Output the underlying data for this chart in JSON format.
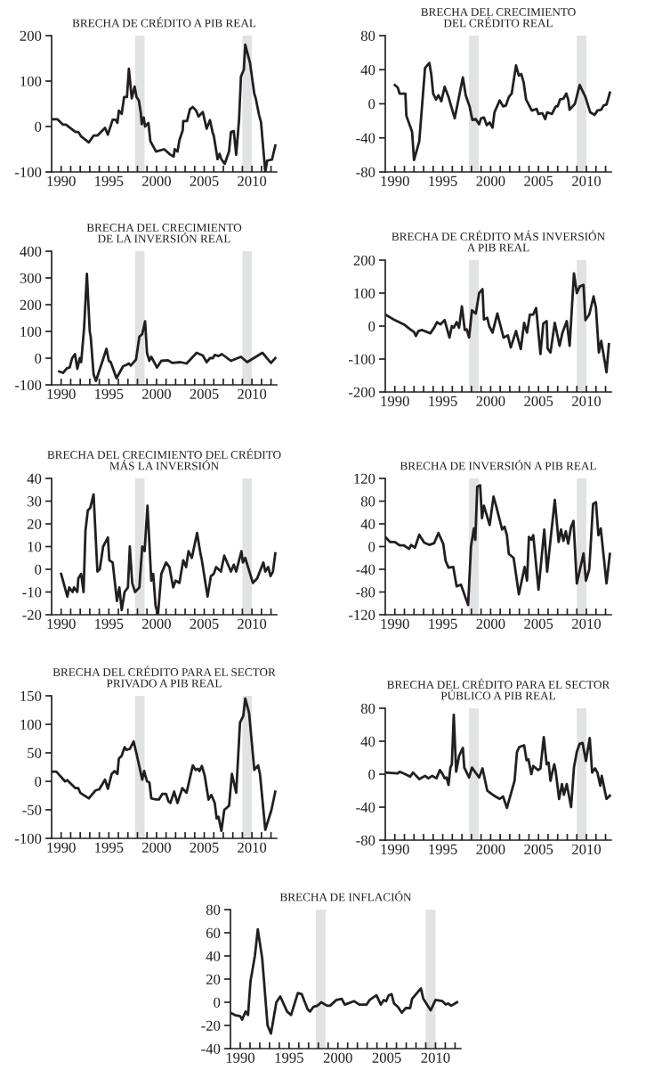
{
  "chart_data": [
    {
      "type": "line",
      "title": "BRECHA DE CRÉDITO A PIB REAL",
      "xlim": [
        1989,
        2012.6
      ],
      "ylim": [
        -100,
        200
      ],
      "yticks": [
        -100,
        0,
        100,
        200
      ],
      "xticks": [
        1990,
        {
          "value": 1991,
          "label": null
        },
        {
          "value": 1992,
          "label": null
        },
        {
          "value": 1993,
          "label": null
        },
        {
          "value": 1994,
          "label": null
        },
        1995,
        {
          "value": 1996,
          "label": null
        },
        {
          "value": 1997,
          "label": null
        },
        {
          "value": 1998,
          "label": null
        },
        {
          "value": 1999,
          "label": null
        },
        2000,
        {
          "value": 2001,
          "label": null
        },
        {
          "value": 2002,
          "label": null
        },
        {
          "value": 2003,
          "label": null
        },
        {
          "value": 2004,
          "label": null
        },
        2005,
        {
          "value": 2006,
          "label": null
        },
        {
          "value": 2007,
          "label": null
        },
        {
          "value": 2008,
          "label": null
        },
        {
          "value": 2009,
          "label": null
        },
        2010,
        {
          "value": 2011,
          "label": null
        },
        {
          "value": 2012,
          "label": null
        }
      ],
      "bands": [
        {
          "axis": "x",
          "from": 1997.75,
          "to": 1998.75,
          "color": "#e1e2e4"
        },
        {
          "axis": "x",
          "from": 2009,
          "to": 2010,
          "color": "#e1e2e4"
        }
      ],
      "x": [
        1989.0,
        1989.6,
        1990.2,
        1990.5,
        1991.5,
        1991.8,
        1992.1,
        1992.9,
        1993.4,
        1993.8,
        1994.6,
        1994.9,
        1995.4,
        1995.7,
        1995.9,
        1996.05,
        1996.35,
        1996.6,
        1996.9,
        1997.1,
        1997.4,
        1997.7,
        1997.9,
        1998.15,
        1998.35,
        1998.45,
        1998.65,
        1998.8,
        1999.15,
        1999.35,
        1999.95,
        2000.8,
        2001.45,
        2001.8,
        2001.9,
        2002.2,
        2002.4,
        2002.75,
        2002.8,
        2003.2,
        2003.5,
        2003.8,
        2004.15,
        2004.4,
        2004.85,
        2005.25,
        2005.6,
        2005.9,
        2006.0,
        2006.4,
        2006.6,
        2006.8,
        2007.15,
        2007.6,
        2007.8,
        2008.1,
        2008.35,
        2008.65,
        2008.85,
        2009.15,
        2009.3,
        2009.8,
        2010.25,
        2010.4,
        2010.75,
        2010.95,
        2011.4,
        2011.6,
        2012.1,
        2012.45
      ],
      "series": [
        {
          "color": "#231f20",
          "values": [
            16,
            16,
            4,
            4,
            -12,
            -12,
            -22,
            -35,
            -20,
            -20,
            -3,
            -18,
            15,
            15,
            8,
            35,
            28,
            65,
            65,
            127,
            62,
            88,
            65,
            57,
            30,
            5,
            20,
            0,
            8,
            -32,
            -55,
            -50,
            -62,
            -66,
            -50,
            -55,
            -30,
            -8,
            12,
            12,
            38,
            43,
            35,
            22,
            32,
            -5,
            14,
            -15,
            -20,
            -72,
            -60,
            -72,
            -82,
            -55,
            -12,
            -10,
            -62,
            15,
            110,
            125,
            180,
            140,
            72,
            62,
            25,
            10,
            -100,
            -75,
            -73,
            -42
          ]
        }
      ]
    },
    {
      "type": "line",
      "title": "BRECHA DEL CRECIMIENTO\nDEL CRÉDITO REAL",
      "xlim": [
        1989,
        2012.6
      ],
      "ylim": [
        -80,
        80
      ],
      "yticks": [
        -80,
        -40,
        0,
        40,
        80
      ],
      "xticks": [
        1990,
        {
          "value": 1991,
          "label": null
        },
        {
          "value": 1992,
          "label": null
        },
        {
          "value": 1993,
          "label": null
        },
        {
          "value": 1994,
          "label": null
        },
        1995,
        {
          "value": 1996,
          "label": null
        },
        {
          "value": 1997,
          "label": null
        },
        {
          "value": 1998,
          "label": null
        },
        {
          "value": 1999,
          "label": null
        },
        2000,
        {
          "value": 2001,
          "label": null
        },
        {
          "value": 2002,
          "label": null
        },
        {
          "value": 2003,
          "label": null
        },
        {
          "value": 2004,
          "label": null
        },
        2005,
        {
          "value": 2006,
          "label": null
        },
        {
          "value": 2007,
          "label": null
        },
        {
          "value": 2008,
          "label": null
        },
        {
          "value": 2009,
          "label": null
        },
        2010,
        {
          "value": 2011,
          "label": null
        },
        {
          "value": 2012,
          "label": null
        }
      ],
      "bands": [
        {
          "axis": "x",
          "from": 1997.75,
          "to": 1998.75,
          "color": "#e1e2e4"
        },
        {
          "axis": "x",
          "from": 2009,
          "to": 2010,
          "color": "#e1e2e4"
        }
      ],
      "x": [
        1990.0,
        1990.3,
        1990.5,
        1991.1,
        1991.2,
        1991.8,
        1992.0,
        1992.55,
        1993.15,
        1993.6,
        1993.8,
        1994.0,
        1994.3,
        1994.55,
        1994.85,
        1995.2,
        1995.6,
        1996.25,
        1997.1,
        1997.4,
        1997.8,
        1998.1,
        1998.45,
        1998.8,
        1999.0,
        1999.3,
        1999.6,
        1999.9,
        2000.2,
        2000.4,
        2000.95,
        2001.3,
        2001.6,
        2001.9,
        2002.2,
        2002.65,
        2002.95,
        2003.2,
        2003.45,
        2003.7,
        2004.3,
        2004.8,
        2005.0,
        2005.4,
        2005.7,
        2005.9,
        2006.4,
        2006.8,
        2007.0,
        2007.25,
        2007.6,
        2007.9,
        2008.1,
        2008.25,
        2008.8,
        2009.3,
        2009.9,
        2010.4,
        2010.85,
        2011.15,
        2011.55,
        2011.8,
        2012.1,
        2012.45
      ],
      "series": [
        {
          "color": "#231f20",
          "values": [
            22,
            19,
            12,
            12,
            -14,
            -33,
            -66,
            -44,
            42,
            48,
            35,
            12,
            5,
            10,
            3,
            20,
            8,
            -17,
            31,
            10,
            -3,
            -19,
            -18,
            -24,
            -17,
            -16,
            -25,
            -22,
            -28,
            -10,
            4,
            -3,
            -2,
            8,
            12,
            45,
            33,
            35,
            25,
            5,
            -8,
            -6,
            -12,
            -11,
            -18,
            -10,
            -12,
            -3,
            -3,
            5,
            6,
            12,
            5,
            -7,
            0,
            22,
            8,
            -10,
            -13,
            -8,
            -7,
            -2,
            -1,
            13
          ]
        }
      ]
    },
    {
      "type": "line",
      "title": "BRECHA DEL CRECIMIENTO\nDE LA INVERSIÓN REAL",
      "xlim": [
        1989,
        2012.6
      ],
      "ylim": [
        -100,
        400
      ],
      "yticks": [
        -100,
        0,
        100,
        200,
        300,
        400
      ],
      "xticks": [
        1990,
        {
          "value": 1991,
          "label": null
        },
        {
          "value": 1992,
          "label": null
        },
        {
          "value": 1993,
          "label": null
        },
        {
          "value": 1994,
          "label": null
        },
        1995,
        {
          "value": 1996,
          "label": null
        },
        {
          "value": 1997,
          "label": null
        },
        {
          "value": 1998,
          "label": null
        },
        {
          "value": 1999,
          "label": null
        },
        2000,
        {
          "value": 2001,
          "label": null
        },
        {
          "value": 2002,
          "label": null
        },
        {
          "value": 2003,
          "label": null
        },
        {
          "value": 2004,
          "label": null
        },
        2005,
        {
          "value": 2006,
          "label": null
        },
        {
          "value": 2007,
          "label": null
        },
        {
          "value": 2008,
          "label": null
        },
        {
          "value": 2009,
          "label": null
        },
        2010,
        {
          "value": 2011,
          "label": null
        },
        {
          "value": 2012,
          "label": null
        }
      ],
      "bands": [
        {
          "axis": "x",
          "from": 1997.75,
          "to": 1998.75,
          "color": "#e1e2e4"
        },
        {
          "axis": "x",
          "from": 2009,
          "to": 2010,
          "color": "#e1e2e4"
        }
      ],
      "x": [
        1989.8,
        1990.2,
        1990.6,
        1990.9,
        1991.15,
        1991.45,
        1991.7,
        1991.95,
        1992.1,
        1992.4,
        1992.7,
        1993.0,
        1993.1,
        1993.4,
        1993.65,
        1994.25,
        1994.75,
        1995.0,
        1995.2,
        1995.8,
        1996.5,
        1996.85,
        1997.1,
        1997.3,
        1997.85,
        1998.2,
        1998.5,
        1998.8,
        1999.0,
        1999.25,
        1999.45,
        2000.05,
        2000.5,
        2001.2,
        2001.65,
        2002.5,
        2003.15,
        2003.55,
        2004.2,
        2004.85,
        2005.25,
        2005.6,
        2005.9,
        2006.1,
        2006.5,
        2006.85,
        2007.8,
        2008.85,
        2009.5,
        2011.1,
        2012.0,
        2012.45
      ],
      "series": [
        {
          "color": "#231f20",
          "values": [
            -50,
            -55,
            -38,
            -35,
            0,
            15,
            -40,
            0,
            -15,
            110,
            315,
            100,
            80,
            -60,
            -85,
            -20,
            35,
            -10,
            -15,
            -75,
            -30,
            -25,
            -20,
            -28,
            -5,
            80,
            90,
            138,
            20,
            -10,
            5,
            -35,
            -10,
            -8,
            -18,
            -15,
            -20,
            -5,
            20,
            10,
            -15,
            0,
            0,
            12,
            8,
            15,
            -10,
            5,
            -15,
            20,
            -18,
            0
          ]
        }
      ]
    },
    {
      "type": "line",
      "title": "BRECHA DE CRÉDITO MÁS INVERSIÓN\nA PIB REAL",
      "xlim": [
        1989,
        2012.6
      ],
      "ylim": [
        -200,
        200
      ],
      "yticks": [
        -200,
        -100,
        0,
        100,
        200
      ],
      "xticks": [
        1990,
        {
          "value": 1991,
          "label": null
        },
        {
          "value": 1992,
          "label": null
        },
        {
          "value": 1993,
          "label": null
        },
        {
          "value": 1994,
          "label": null
        },
        1995,
        {
          "value": 1996,
          "label": null
        },
        {
          "value": 1997,
          "label": null
        },
        {
          "value": 1998,
          "label": null
        },
        {
          "value": 1999,
          "label": null
        },
        2000,
        {
          "value": 2001,
          "label": null
        },
        {
          "value": 2002,
          "label": null
        },
        {
          "value": 2003,
          "label": null
        },
        {
          "value": 2004,
          "label": null
        },
        2005,
        {
          "value": 2006,
          "label": null
        },
        {
          "value": 2007,
          "label": null
        },
        {
          "value": 2008,
          "label": null
        },
        {
          "value": 2009,
          "label": null
        },
        2010,
        {
          "value": 2011,
          "label": null
        },
        {
          "value": 2012,
          "label": null
        }
      ],
      "bands": [
        {
          "axis": "x",
          "from": 1997.75,
          "to": 1998.75,
          "color": "#e1e2e4"
        },
        {
          "axis": "x",
          "from": 2009,
          "to": 2010,
          "color": "#e1e2e4"
        }
      ],
      "x": [
        1989.0,
        1990.0,
        1990.95,
        1991.6,
        1992.0,
        1992.2,
        1992.45,
        1992.85,
        1993.7,
        1994.1,
        1994.4,
        1994.75,
        1995.2,
        1995.7,
        1995.95,
        1996.15,
        1996.45,
        1996.7,
        1997.0,
        1997.3,
        1997.5,
        1997.75,
        1998.05,
        1998.45,
        1998.8,
        1999.15,
        1999.3,
        1999.65,
        1999.85,
        2000.2,
        2000.7,
        2001.35,
        2001.8,
        2002.1,
        2002.65,
        2003.15,
        2003.5,
        2003.8,
        2004.1,
        2004.45,
        2004.75,
        2005.2,
        2005.5,
        2005.85,
        2005.95,
        2006.25,
        2006.7,
        2007.2,
        2007.5,
        2007.95,
        2008.25,
        2008.7,
        2009.0,
        2009.3,
        2009.7,
        2009.9,
        2010.3,
        2010.75,
        2011.0,
        2011.3,
        2011.55,
        2012.1,
        2012.35
      ],
      "series": [
        {
          "color": "#231f20",
          "values": [
            35,
            18,
            5,
            -10,
            -18,
            -30,
            -15,
            -12,
            -22,
            -5,
            12,
            5,
            18,
            -35,
            0,
            -5,
            12,
            -5,
            60,
            -12,
            -10,
            -35,
            48,
            38,
            100,
            112,
            20,
            25,
            0,
            -20,
            38,
            -35,
            -28,
            -65,
            -15,
            -70,
            10,
            -20,
            35,
            35,
            55,
            -85,
            8,
            15,
            -68,
            -80,
            10,
            -60,
            -20,
            15,
            -60,
            160,
            100,
            120,
            125,
            18,
            35,
            90,
            55,
            -80,
            -45,
            -140,
            -55
          ]
        }
      ]
    },
    {
      "type": "line",
      "title": "BRECHA DEL CRECIMIENTO DEL CRÉDITO\nMÁS LA INVERSIÓN",
      "xlim": [
        1989,
        2012.6
      ],
      "ylim": [
        -20,
        40
      ],
      "yticks": [
        -20,
        -10,
        0,
        10,
        20,
        30,
        40
      ],
      "xticks": [
        1990,
        {
          "value": 1991,
          "label": null
        },
        {
          "value": 1992,
          "label": null
        },
        {
          "value": 1993,
          "label": null
        },
        {
          "value": 1994,
          "label": null
        },
        1995,
        {
          "value": 1996,
          "label": null
        },
        {
          "value": 1997,
          "label": null
        },
        {
          "value": 1998,
          "label": null
        },
        {
          "value": 1999,
          "label": null
        },
        2000,
        {
          "value": 2001,
          "label": null
        },
        {
          "value": 2002,
          "label": null
        },
        {
          "value": 2003,
          "label": null
        },
        {
          "value": 2004,
          "label": null
        },
        2005,
        {
          "value": 2006,
          "label": null
        },
        {
          "value": 2007,
          "label": null
        },
        {
          "value": 2008,
          "label": null
        },
        {
          "value": 2009,
          "label": null
        },
        2010,
        {
          "value": 2011,
          "label": null
        },
        {
          "value": 2012,
          "label": null
        }
      ],
      "bands": [
        {
          "axis": "x",
          "from": 1997.75,
          "to": 1998.75,
          "color": "#e1e2e4"
        },
        {
          "axis": "x",
          "from": 2009,
          "to": 2010,
          "color": "#e1e2e4"
        }
      ],
      "x": [
        1990.0,
        1990.65,
        1990.85,
        1991.2,
        1991.35,
        1991.7,
        1991.8,
        1992.1,
        1992.35,
        1992.55,
        1992.8,
        1993.05,
        1993.4,
        1993.8,
        1994.05,
        1994.4,
        1994.9,
        1995.05,
        1995.4,
        1995.85,
        1996.1,
        1996.35,
        1996.65,
        1997.0,
        1997.2,
        1997.45,
        1997.75,
        1998.2,
        1998.5,
        1998.75,
        1999.05,
        1999.45,
        1999.65,
        1999.9,
        2000.15,
        2000.5,
        2001.0,
        2001.35,
        2001.75,
        2002.0,
        2002.4,
        2002.8,
        2003.1,
        2003.35,
        2003.7,
        2004.25,
        2004.6,
        2004.75,
        2005.35,
        2005.7,
        2006.0,
        2006.25,
        2006.75,
        2007.1,
        2007.8,
        2008.1,
        2008.35,
        2008.9,
        2009.05,
        2009.3,
        2010.1,
        2010.55,
        2011.2,
        2011.4,
        2011.7,
        2011.95,
        2012.2,
        2012.45
      ],
      "series": [
        {
          "color": "#231f20",
          "values": [
            -2,
            -12,
            -8,
            -10,
            -8,
            -10,
            -4,
            -2,
            -10,
            17,
            26,
            27,
            33,
            -1,
            0,
            10,
            14,
            4,
            3,
            -14,
            -8,
            -18,
            -10,
            -8,
            10,
            -6,
            -10,
            -8,
            10,
            8,
            28,
            -5,
            -2,
            -16,
            -20,
            -2,
            3,
            1,
            -8,
            -5,
            -6,
            4,
            1,
            8,
            5,
            16,
            7,
            4,
            -12,
            -3,
            -2,
            1,
            -1,
            6,
            -1,
            2,
            -1,
            8,
            3,
            5,
            -6,
            -4,
            3,
            -1,
            1,
            -3,
            -1,
            7
          ]
        }
      ]
    },
    {
      "type": "line",
      "title": "BRECHA DE INVERSIÓN A PIB REAL",
      "xlim": [
        1989,
        2012.6
      ],
      "ylim": [
        -120,
        120
      ],
      "yticks": [
        -120,
        -80,
        -40,
        0,
        40,
        80,
        120
      ],
      "xticks": [
        1990,
        {
          "value": 1991,
          "label": null
        },
        {
          "value": 1992,
          "label": null
        },
        {
          "value": 1993,
          "label": null
        },
        {
          "value": 1994,
          "label": null
        },
        1995,
        {
          "value": 1996,
          "label": null
        },
        {
          "value": 1997,
          "label": null
        },
        {
          "value": 1998,
          "label": null
        },
        {
          "value": 1999,
          "label": null
        },
        2000,
        {
          "value": 2001,
          "label": null
        },
        {
          "value": 2002,
          "label": null
        },
        {
          "value": 2003,
          "label": null
        },
        {
          "value": 2004,
          "label": null
        },
        2005,
        {
          "value": 2006,
          "label": null
        },
        {
          "value": 2007,
          "label": null
        },
        {
          "value": 2008,
          "label": null
        },
        {
          "value": 2009,
          "label": null
        },
        2010,
        {
          "value": 2011,
          "label": null
        },
        {
          "value": 2012,
          "label": null
        }
      ],
      "bands": [
        {
          "axis": "x",
          "from": 1997.75,
          "to": 1998.75,
          "color": "#e1e2e4"
        },
        {
          "axis": "x",
          "from": 2009,
          "to": 2010,
          "color": "#e1e2e4"
        }
      ],
      "x": [
        1989.0,
        1989.5,
        1990.0,
        1990.5,
        1990.95,
        1991.5,
        1991.7,
        1992.1,
        1992.55,
        1993.05,
        1993.6,
        1994.1,
        1994.55,
        1995.05,
        1995.3,
        1995.6,
        1996.1,
        1996.45,
        1996.9,
        1997.65,
        1997.95,
        1998.25,
        1998.4,
        1998.6,
        1998.9,
        1999.1,
        1999.3,
        1999.9,
        2000.3,
        2000.6,
        2001.2,
        2001.45,
        2001.7,
        2001.9,
        2002.4,
        2002.95,
        2003.55,
        2003.8,
        2004.0,
        2004.25,
        2004.45,
        2005.0,
        2005.6,
        2005.9,
        2006.7,
        2007.1,
        2007.35,
        2007.6,
        2007.85,
        2008.1,
        2008.4,
        2008.65,
        2009.0,
        2009.7,
        2009.95,
        2010.3,
        2010.7,
        2011.0,
        2011.25,
        2011.5,
        2012.1,
        2012.45
      ],
      "series": [
        {
          "color": "#231f20",
          "values": [
            17,
            8,
            8,
            2,
            2,
            -4,
            3,
            -2,
            21,
            7,
            3,
            6,
            24,
            5,
            -25,
            -37,
            -36,
            -70,
            -67,
            -103,
            0,
            32,
            12,
            105,
            108,
            50,
            72,
            38,
            88,
            70,
            30,
            35,
            20,
            -13,
            -20,
            -84,
            -36,
            -60,
            17,
            12,
            20,
            -76,
            30,
            -44,
            82,
            8,
            30,
            10,
            27,
            5,
            35,
            45,
            -65,
            -12,
            -60,
            -40,
            75,
            78,
            20,
            32,
            -65,
            -13
          ]
        }
      ]
    },
    {
      "type": "line",
      "title": "BRECHA DEL CRÉDITO PARA EL SECTOR\nPRIVADO A PIB REAL",
      "xlim": [
        1989,
        2012.6
      ],
      "ylim": [
        -100,
        150
      ],
      "yticks": [
        -100,
        -50,
        0,
        50,
        100,
        150
      ],
      "xticks": [
        1990,
        {
          "value": 1991,
          "label": null
        },
        {
          "value": 1992,
          "label": null
        },
        {
          "value": 1993,
          "label": null
        },
        {
          "value": 1994,
          "label": null
        },
        1995,
        {
          "value": 1996,
          "label": null
        },
        {
          "value": 1997,
          "label": null
        },
        {
          "value": 1998,
          "label": null
        },
        {
          "value": 1999,
          "label": null
        },
        2000,
        {
          "value": 2001,
          "label": null
        },
        {
          "value": 2002,
          "label": null
        },
        {
          "value": 2003,
          "label": null
        },
        {
          "value": 2004,
          "label": null
        },
        2005,
        {
          "value": 2006,
          "label": null
        },
        {
          "value": 2007,
          "label": null
        },
        {
          "value": 2008,
          "label": null
        },
        {
          "value": 2009,
          "label": null
        },
        2010,
        {
          "value": 2011,
          "label": null
        },
        {
          "value": 2012,
          "label": null
        }
      ],
      "bands": [
        {
          "axis": "x",
          "from": 1997.75,
          "to": 1998.75,
          "color": "#e1e2e4"
        },
        {
          "axis": "x",
          "from": 2009,
          "to": 2010,
          "color": "#e1e2e4"
        }
      ],
      "x": [
        1989.0,
        1989.5,
        1990.4,
        1990.65,
        1991.5,
        1991.8,
        1992.0,
        1992.9,
        1993.6,
        1994.0,
        1994.6,
        1994.9,
        1995.3,
        1995.6,
        1995.9,
        1996.05,
        1996.35,
        1996.65,
        1996.85,
        1997.2,
        1997.6,
        1997.95,
        1998.5,
        1998.7,
        1999.0,
        1999.25,
        1999.45,
        1999.95,
        2000.25,
        2000.6,
        2001.0,
        2001.25,
        2001.45,
        2001.85,
        2002.2,
        2002.7,
        2003.15,
        2003.8,
        2004.1,
        2004.35,
        2004.5,
        2004.75,
        2005.05,
        2005.45,
        2005.75,
        2006.1,
        2006.3,
        2006.5,
        2006.8,
        2007.1,
        2007.6,
        2007.9,
        2008.35,
        2008.75,
        2009.1,
        2009.3,
        2009.7,
        2010.25,
        2010.65,
        2010.85,
        2011.4,
        2012.05,
        2012.45
      ],
      "series": [
        {
          "color": "#231f20",
          "values": [
            17,
            17,
            0,
            2,
            -12,
            -12,
            -20,
            -30,
            -16,
            -14,
            3,
            -13,
            13,
            18,
            13,
            40,
            45,
            60,
            55,
            57,
            70,
            45,
            3,
            18,
            0,
            -2,
            -30,
            -32,
            -32,
            -22,
            -22,
            -35,
            -38,
            -18,
            -38,
            -12,
            -20,
            28,
            20,
            22,
            18,
            27,
            10,
            -32,
            -24,
            -38,
            -65,
            -62,
            -87,
            -50,
            -43,
            13,
            -20,
            103,
            115,
            145,
            120,
            20,
            28,
            12,
            -85,
            -50,
            -18
          ]
        }
      ]
    },
    {
      "type": "line",
      "title": "BRECHA DEL CRÉDITO PARA EL SECTOR\nPÚBLICO A PIB REAL",
      "xlim": [
        1989,
        2012.6
      ],
      "ylim": [
        -80,
        80
      ],
      "yticks": [
        -80,
        -40,
        0,
        40,
        80
      ],
      "xticks": [
        1990,
        {
          "value": 1991,
          "label": null
        },
        {
          "value": 1992,
          "label": null
        },
        {
          "value": 1993,
          "label": null
        },
        {
          "value": 1994,
          "label": null
        },
        1995,
        {
          "value": 1996,
          "label": null
        },
        {
          "value": 1997,
          "label": null
        },
        {
          "value": 1998,
          "label": null
        },
        {
          "value": 1999,
          "label": null
        },
        2000,
        {
          "value": 2001,
          "label": null
        },
        {
          "value": 2002,
          "label": null
        },
        {
          "value": 2003,
          "label": null
        },
        {
          "value": 2004,
          "label": null
        },
        2005,
        {
          "value": 2006,
          "label": null
        },
        {
          "value": 2007,
          "label": null
        },
        {
          "value": 2008,
          "label": null
        },
        {
          "value": 2009,
          "label": null
        },
        2010,
        {
          "value": 2011,
          "label": null
        },
        {
          "value": 2012,
          "label": null
        }
      ],
      "bands": [
        {
          "axis": "x",
          "from": 1997.75,
          "to": 1998.75,
          "color": "#e1e2e4"
        },
        {
          "axis": "x",
          "from": 2009,
          "to": 2010,
          "color": "#e1e2e4"
        }
      ],
      "x": [
        1989.0,
        1990.3,
        1990.5,
        1991.1,
        1991.6,
        1991.9,
        1992.55,
        1993.15,
        1993.5,
        1993.9,
        1994.35,
        1994.7,
        1994.95,
        1995.2,
        1995.4,
        1995.6,
        1995.8,
        1995.95,
        1996.15,
        1996.4,
        1996.7,
        1997.1,
        1997.25,
        1997.75,
        1998.05,
        1998.8,
        1999.15,
        1999.65,
        2000.1,
        2000.5,
        2000.95,
        2001.3,
        2001.7,
        2002.5,
        2002.75,
        2003.0,
        2003.5,
        2003.75,
        2003.95,
        2004.25,
        2004.45,
        2004.95,
        2005.2,
        2005.55,
        2005.85,
        2006.05,
        2006.25,
        2006.45,
        2006.65,
        2006.8,
        2007.15,
        2007.45,
        2007.65,
        2007.95,
        2008.4,
        2008.7,
        2009.0,
        2009.3,
        2009.6,
        2009.95,
        2010.35,
        2010.6,
        2010.9,
        2011.15,
        2011.45,
        2011.6,
        2012.1,
        2012.45
      ],
      "series": [
        {
          "color": "#231f20",
          "values": [
            2,
            1,
            3,
            0,
            -3,
            2,
            -6,
            -2,
            -5,
            -2,
            -5,
            5,
            1,
            -5,
            -4,
            -13,
            8,
            12,
            72,
            3,
            22,
            32,
            8,
            -4,
            8,
            -4,
            7,
            -20,
            -24,
            -27,
            -30,
            -27,
            -41,
            -8,
            27,
            33,
            35,
            17,
            18,
            0,
            10,
            5,
            7,
            45,
            12,
            14,
            -8,
            3,
            12,
            3,
            -30,
            -12,
            -25,
            -12,
            -40,
            8,
            27,
            37,
            38,
            16,
            44,
            2,
            7,
            2,
            -14,
            -2,
            -30,
            -26
          ]
        }
      ]
    },
    {
      "type": "line",
      "title": "BRECHA DE INFLACIÓN",
      "xlim": [
        1989,
        2012.6
      ],
      "ylim": [
        -40,
        80
      ],
      "yticks": [
        -40,
        -20,
        0,
        20,
        40,
        60,
        80
      ],
      "xticks": [
        1990,
        {
          "value": 1991,
          "label": null
        },
        {
          "value": 1992,
          "label": null
        },
        {
          "value": 1993,
          "label": null
        },
        {
          "value": 1994,
          "label": null
        },
        1995,
        {
          "value": 1996,
          "label": null
        },
        {
          "value": 1997,
          "label": null
        },
        {
          "value": 1998,
          "label": null
        },
        {
          "value": 1999,
          "label": null
        },
        2000,
        {
          "value": 2001,
          "label": null
        },
        {
          "value": 2002,
          "label": null
        },
        {
          "value": 2003,
          "label": null
        },
        {
          "value": 2004,
          "label": null
        },
        2005,
        {
          "value": 2006,
          "label": null
        },
        {
          "value": 2007,
          "label": null
        },
        {
          "value": 2008,
          "label": null
        },
        {
          "value": 2009,
          "label": null
        },
        2010,
        {
          "value": 2011,
          "label": null
        },
        {
          "value": 2012,
          "label": null
        }
      ],
      "bands": [
        {
          "axis": "x",
          "from": 1997.75,
          "to": 1998.75,
          "color": "#e1e2e4"
        },
        {
          "axis": "x",
          "from": 2009,
          "to": 2010,
          "color": "#e1e2e4"
        }
      ],
      "x": [
        1989.0,
        1989.45,
        1990.0,
        1990.2,
        1990.55,
        1990.8,
        1991.05,
        1991.5,
        1991.8,
        1992.25,
        1992.8,
        1993.15,
        1993.7,
        1994.1,
        1994.8,
        1995.2,
        1995.9,
        1996.3,
        1996.9,
        1997.15,
        1997.5,
        1997.9,
        1998.3,
        1998.9,
        1999.2,
        1999.85,
        2000.4,
        2000.7,
        2001.65,
        2002.2,
        2002.95,
        2003.25,
        2003.95,
        2004.4,
        2004.7,
        2004.95,
        2005.2,
        2005.5,
        2005.75,
        2006.15,
        2006.55,
        2006.95,
        2007.4,
        2007.6,
        2008.5,
        2008.75,
        2009.5,
        2010.0,
        2010.7,
        2011.05,
        2011.3,
        2011.6,
        2012.2
      ],
      "series": [
        {
          "color": "#231f20",
          "values": [
            -9,
            -11,
            -12,
            -15,
            -8,
            -11,
            18,
            40,
            63,
            38,
            -20,
            -27,
            0,
            5,
            -8,
            -11,
            8,
            7,
            -6,
            -8,
            -4,
            -3,
            0,
            -3,
            -3,
            2,
            3,
            -2,
            1,
            -2,
            -2,
            2,
            6,
            -2,
            2,
            1,
            6,
            7,
            -1,
            -4,
            -9,
            -5,
            -5,
            3,
            12,
            3,
            -7,
            2,
            1,
            -2,
            -1,
            -3,
            0
          ]
        }
      ]
    }
  ]
}
